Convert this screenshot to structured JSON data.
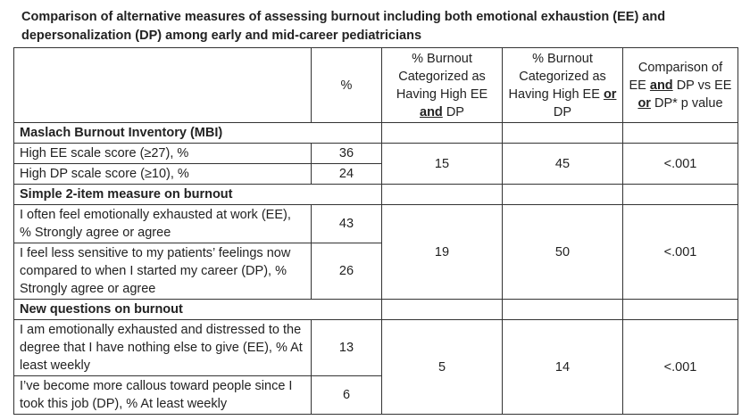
{
  "title": "Comparison of alternative measures of assessing burnout including both emotional exhaustion (EE) and depersonalization (DP) among early and mid-career pediatricians",
  "table": {
    "columns": [
      [
        "%"
      ],
      [
        "% Burnout Categorized as Having High EE ",
        "and",
        " DP"
      ],
      [
        "% Burnout Categorized as Having High EE ",
        "or",
        " DP"
      ],
      [
        "Comparison of EE ",
        "and",
        " DP vs EE ",
        "or",
        " DP* p value"
      ]
    ],
    "sections": [
      {
        "title": "Maslach Burnout Inventory (MBI)",
        "rows": [
          {
            "label": "High EE scale score (≥27), %",
            "pct": 36
          },
          {
            "label": "High DP scale score (≥10), %",
            "pct": 24
          }
        ],
        "and": 15,
        "or": 45,
        "p": "<.001"
      },
      {
        "title": "Simple 2-item measure on burnout",
        "rows": [
          {
            "label": "I often feel emotionally exhausted at work (EE), % Strongly agree or agree",
            "pct": 43
          },
          {
            "label": "I feel less sensitive to my patients’ feelings now compared to when I started my career (DP), % Strongly agree or agree",
            "pct": 26
          }
        ],
        "and": 19,
        "or": 50,
        "p": "<.001"
      },
      {
        "title": "New questions on burnout",
        "rows": [
          {
            "label": "I am emotionally exhausted and distressed to the degree that I have nothing else to give (EE), % At least weekly",
            "pct": 13
          },
          {
            "label": "I’ve become more callous toward people since I took this job (DP), % At least weekly",
            "pct": 6
          }
        ],
        "and": 5,
        "or": 14,
        "p": "<.001"
      }
    ]
  }
}
